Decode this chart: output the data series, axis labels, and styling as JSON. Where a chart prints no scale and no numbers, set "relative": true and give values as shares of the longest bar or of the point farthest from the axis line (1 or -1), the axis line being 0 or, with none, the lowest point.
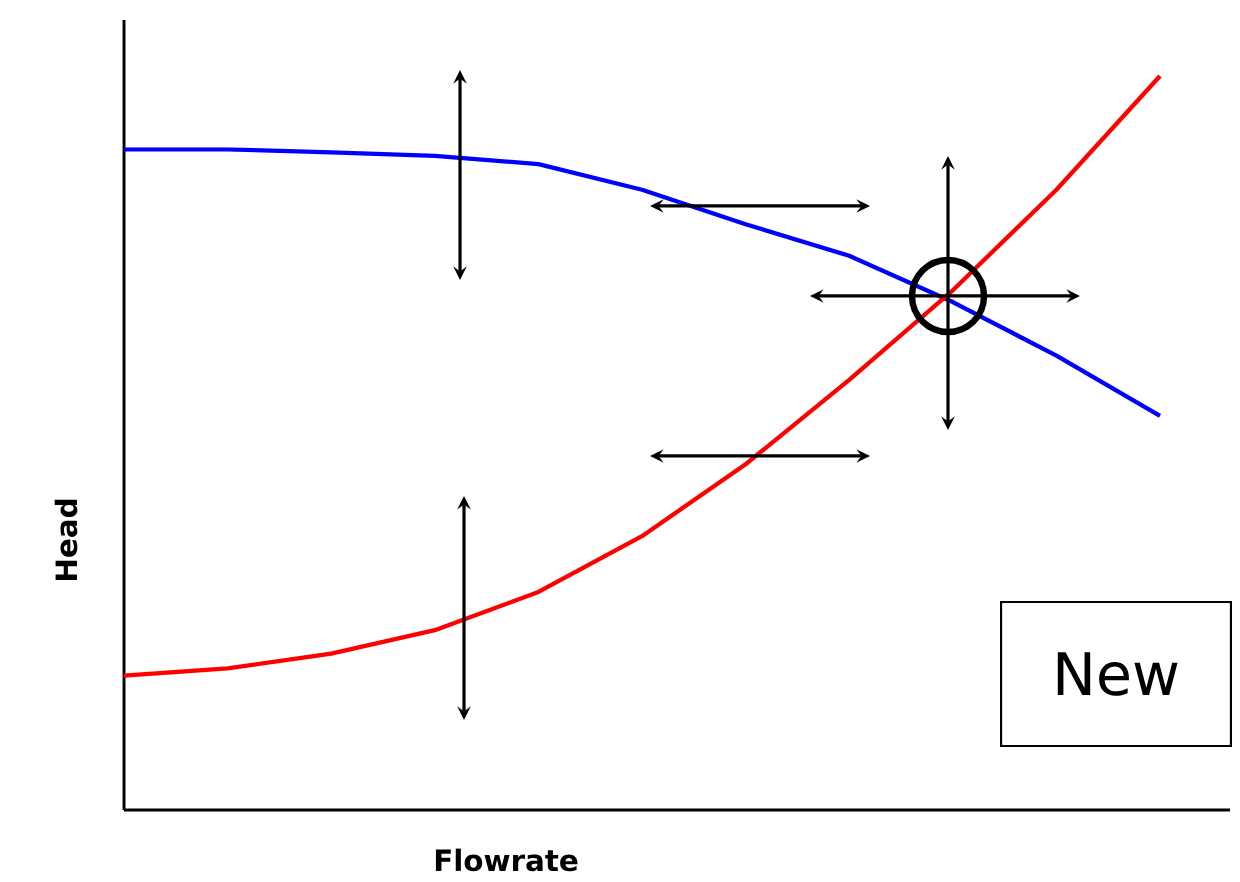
{
  "chart_data": {
    "type": "line",
    "relative": true,
    "xlabel": "Flowrate",
    "ylabel": "Head",
    "annotations": [
      "New"
    ],
    "categories": [
      null,
      null,
      null,
      null,
      null,
      null,
      null,
      null,
      null,
      null,
      null
    ],
    "series": [
      {
        "color": "#0000ff",
        "values": [
          0.9,
          0.9,
          0.896,
          0.891,
          0.88,
          0.845,
          0.798,
          0.755,
          0.692,
          0.619,
          0.537
        ]
      },
      {
        "color": "#ff0000",
        "values": [
          0.183,
          0.193,
          0.213,
          0.245,
          0.297,
          0.373,
          0.471,
          0.586,
          0.708,
          0.845,
          1
        ]
      }
    ]
  }
}
